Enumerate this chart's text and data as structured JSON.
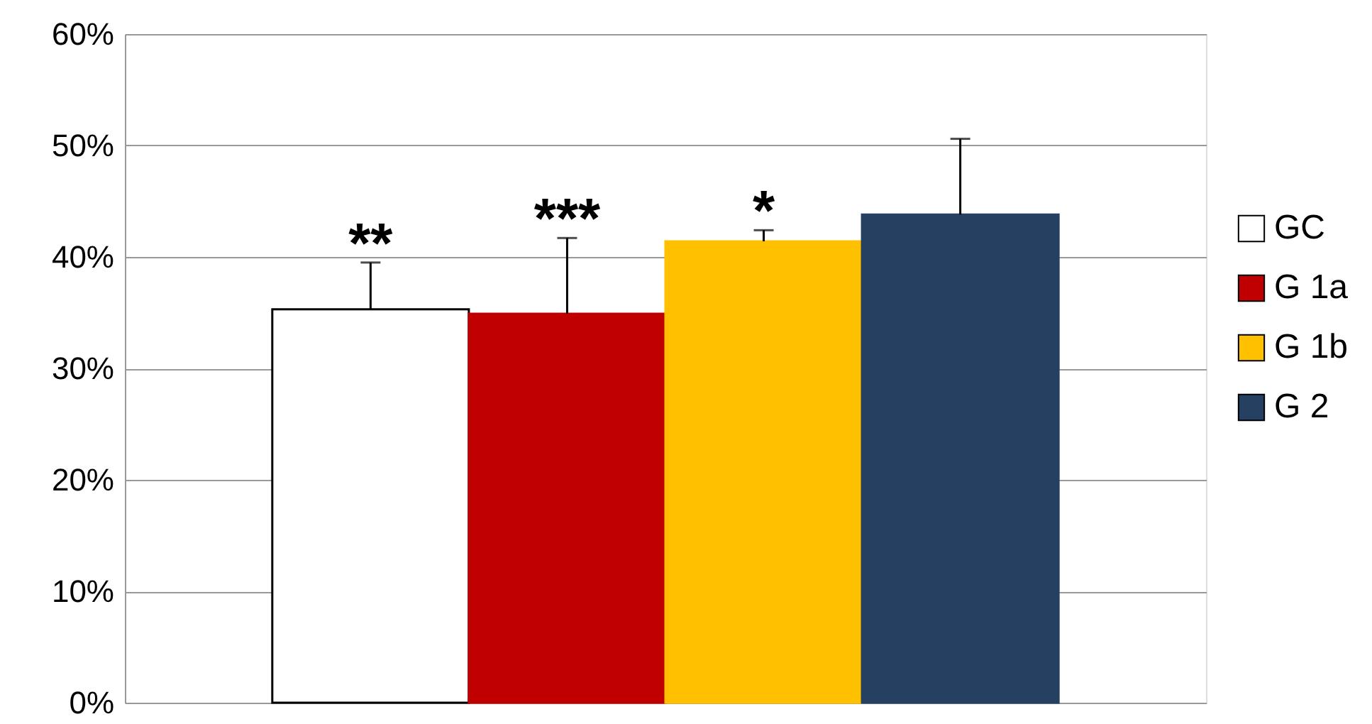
{
  "chart_data": {
    "type": "bar",
    "categories": [
      null
    ],
    "series": [
      {
        "name": "GC",
        "color": "#ffffff",
        "values": [
          35.3
        ],
        "errors": [
          4.2
        ]
      },
      {
        "name": "G 1a",
        "color": "#c00000",
        "values": [
          34.9
        ],
        "errors": [
          6.8
        ]
      },
      {
        "name": "G 1b",
        "color": "#ffc000",
        "values": [
          41.4
        ],
        "errors": [
          1.0
        ]
      },
      {
        "name": "G 2",
        "color": "#264061",
        "values": [
          43.8
        ],
        "errors": [
          6.8
        ]
      }
    ],
    "ylim": [
      0,
      60
    ],
    "yticks": [
      {
        "value": 0,
        "label": "0%"
      },
      {
        "value": 10,
        "label": "10%"
      },
      {
        "value": 20,
        "label": "20%"
      },
      {
        "value": 30,
        "label": "30%"
      },
      {
        "value": 40,
        "label": "40%"
      },
      {
        "value": 50,
        "label": "50%"
      },
      {
        "value": 60,
        "label": "60%"
      }
    ],
    "annotations": [
      "**",
      "***",
      "*"
    ],
    "grid": "y",
    "legend": "right"
  }
}
